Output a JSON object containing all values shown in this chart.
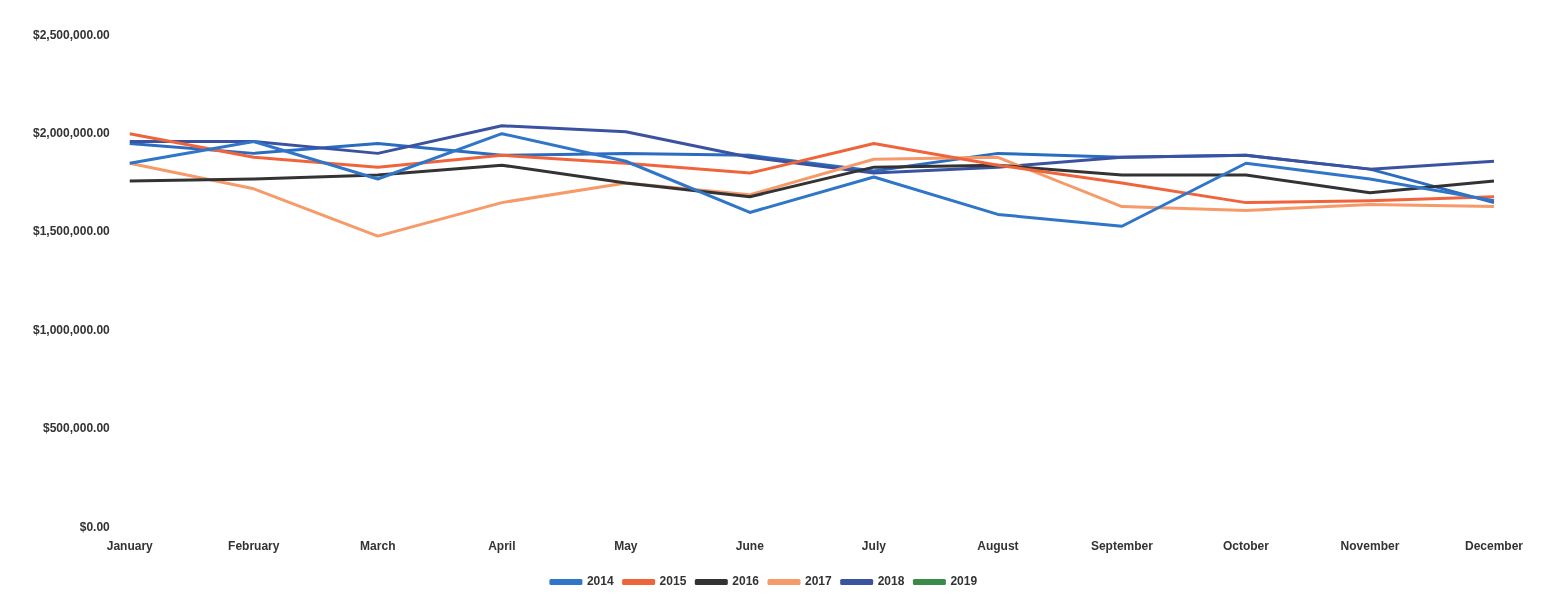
{
  "chart_data": {
    "type": "line",
    "categories": [
      "January",
      "February",
      "March",
      "April",
      "May",
      "June",
      "July",
      "August",
      "September",
      "October",
      "November",
      "December"
    ],
    "series": [
      {
        "name": "2014",
        "color": "#2f75c8",
        "values": [
          1850000,
          1960000,
          1770000,
          2000000,
          1860000,
          1600000,
          1780000,
          1590000,
          1530000,
          1850000,
          1770000,
          1660000
        ]
      },
      {
        "name": "2015",
        "color": "#f0643c",
        "values": [
          2000000,
          1880000,
          1830000,
          1890000,
          1850000,
          1800000,
          1950000,
          1840000,
          1750000,
          1650000,
          1660000,
          1680000
        ]
      },
      {
        "name": "2016",
        "color": "#333333",
        "values": [
          1760000,
          1770000,
          1790000,
          1840000,
          1750000,
          1680000,
          1830000,
          1840000,
          1790000,
          1790000,
          1700000,
          1760000
        ]
      },
      {
        "name": "2017",
        "color": "#f79a6a",
        "values": [
          1850000,
          1720000,
          1480000,
          1650000,
          1750000,
          1690000,
          1870000,
          1880000,
          1630000,
          1610000,
          1640000,
          1630000
        ]
      },
      {
        "name": "2018",
        "color": "#3b52a0",
        "values": [
          1960000,
          1960000,
          1900000,
          2040000,
          2010000,
          1880000,
          1800000,
          1830000,
          1880000,
          1890000,
          1820000,
          1860000
        ]
      },
      {
        "name": "2019",
        "color": "#3a8a4a",
        "values": [
          null,
          null,
          null,
          null,
          null,
          null,
          null,
          null,
          null,
          null,
          null,
          null
        ]
      },
      {
        "color": "#2a6cc0",
        "values": [
          1950000,
          1900000,
          1950000,
          1890000,
          1900000,
          1890000,
          1810000,
          1900000,
          1880000,
          1890000,
          1820000,
          1650000
        ]
      }
    ],
    "ylim": [
      0,
      2500000
    ],
    "yticks": [
      {
        "value": 0,
        "label": "$0.00"
      },
      {
        "value": 500000,
        "label": "$500,000.00"
      },
      {
        "value": 1000000,
        "label": "$1,000,000.00"
      },
      {
        "value": 1500000,
        "label": "$1,500,000.00"
      },
      {
        "value": 2000000,
        "label": "$2,000,000.00"
      },
      {
        "value": 2500000,
        "label": "$2,500,000.00"
      }
    ],
    "grid": false,
    "legend": "bottom",
    "marker": "none",
    "line_style": "solid"
  }
}
